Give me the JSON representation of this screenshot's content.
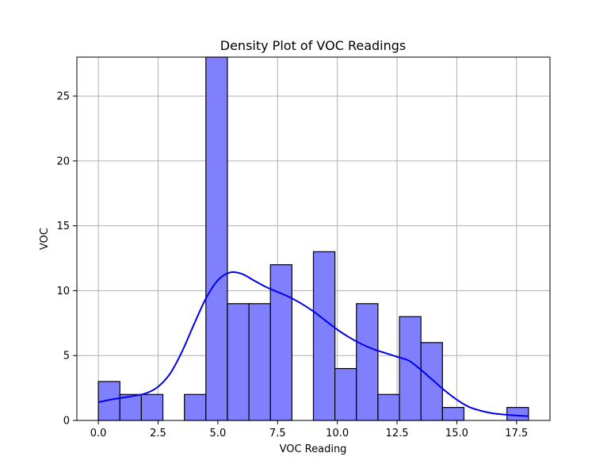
{
  "chart_data": {
    "type": "bar",
    "subtype": "histogram-with-density",
    "title": "Density Plot of VOC Readings",
    "xlabel": "VOC Reading",
    "ylabel": "VOC",
    "xlim": [
      -0.9,
      18.9
    ],
    "ylim": [
      0,
      28.0
    ],
    "xticks": [
      0.0,
      2.5,
      5.0,
      7.5,
      10.0,
      12.5,
      15.0,
      17.5
    ],
    "xtick_labels": [
      "0.0",
      "2.5",
      "5.0",
      "7.5",
      "10.0",
      "12.5",
      "15.0",
      "17.5"
    ],
    "yticks": [
      0,
      5,
      10,
      15,
      20,
      25
    ],
    "ytick_labels": [
      "0",
      "5",
      "10",
      "15",
      "20",
      "25"
    ],
    "grid": true,
    "bar_color": "#8080ff",
    "edge_color": "#000000",
    "kde_color": "#0000ee",
    "bins": [
      {
        "x0": 0.0,
        "x1": 0.9,
        "count": 3
      },
      {
        "x0": 0.9,
        "x1": 1.8,
        "count": 2
      },
      {
        "x0": 1.8,
        "x1": 2.7,
        "count": 2
      },
      {
        "x0": 2.7,
        "x1": 3.6,
        "count": 0
      },
      {
        "x0": 3.6,
        "x1": 4.5,
        "count": 2
      },
      {
        "x0": 4.5,
        "x1": 5.4,
        "count": 28
      },
      {
        "x0": 5.4,
        "x1": 6.3,
        "count": 9
      },
      {
        "x0": 6.3,
        "x1": 7.2,
        "count": 9
      },
      {
        "x0": 7.2,
        "x1": 8.1,
        "count": 12
      },
      {
        "x0": 8.1,
        "x1": 9.0,
        "count": 0
      },
      {
        "x0": 9.0,
        "x1": 9.9,
        "count": 13
      },
      {
        "x0": 9.9,
        "x1": 10.8,
        "count": 4
      },
      {
        "x0": 10.8,
        "x1": 11.7,
        "count": 9
      },
      {
        "x0": 11.7,
        "x1": 12.6,
        "count": 2
      },
      {
        "x0": 12.6,
        "x1": 13.5,
        "count": 8
      },
      {
        "x0": 13.5,
        "x1": 14.4,
        "count": 6
      },
      {
        "x0": 14.4,
        "x1": 15.3,
        "count": 1
      },
      {
        "x0": 15.3,
        "x1": 16.2,
        "count": 0
      },
      {
        "x0": 16.2,
        "x1": 17.1,
        "count": 0
      },
      {
        "x0": 17.1,
        "x1": 18.0,
        "count": 1
      }
    ],
    "kde": {
      "x": [
        0.0,
        0.5,
        1.0,
        1.5,
        2.0,
        2.5,
        3.0,
        3.5,
        4.0,
        4.5,
        5.0,
        5.5,
        6.0,
        6.5,
        7.0,
        7.5,
        8.0,
        8.5,
        9.0,
        9.5,
        10.0,
        10.5,
        11.0,
        11.5,
        12.0,
        12.5,
        13.0,
        13.5,
        14.0,
        14.5,
        15.0,
        15.5,
        16.0,
        16.5,
        17.0,
        17.5,
        18.0
      ],
      "y": [
        1.4,
        1.6,
        1.75,
        1.9,
        2.1,
        2.6,
        3.6,
        5.3,
        7.4,
        9.4,
        10.8,
        11.4,
        11.3,
        10.8,
        10.3,
        9.9,
        9.5,
        9.0,
        8.4,
        7.7,
        7.0,
        6.4,
        5.9,
        5.5,
        5.2,
        4.9,
        4.6,
        3.9,
        3.1,
        2.3,
        1.6,
        1.05,
        0.75,
        0.55,
        0.45,
        0.38,
        0.33
      ]
    }
  }
}
